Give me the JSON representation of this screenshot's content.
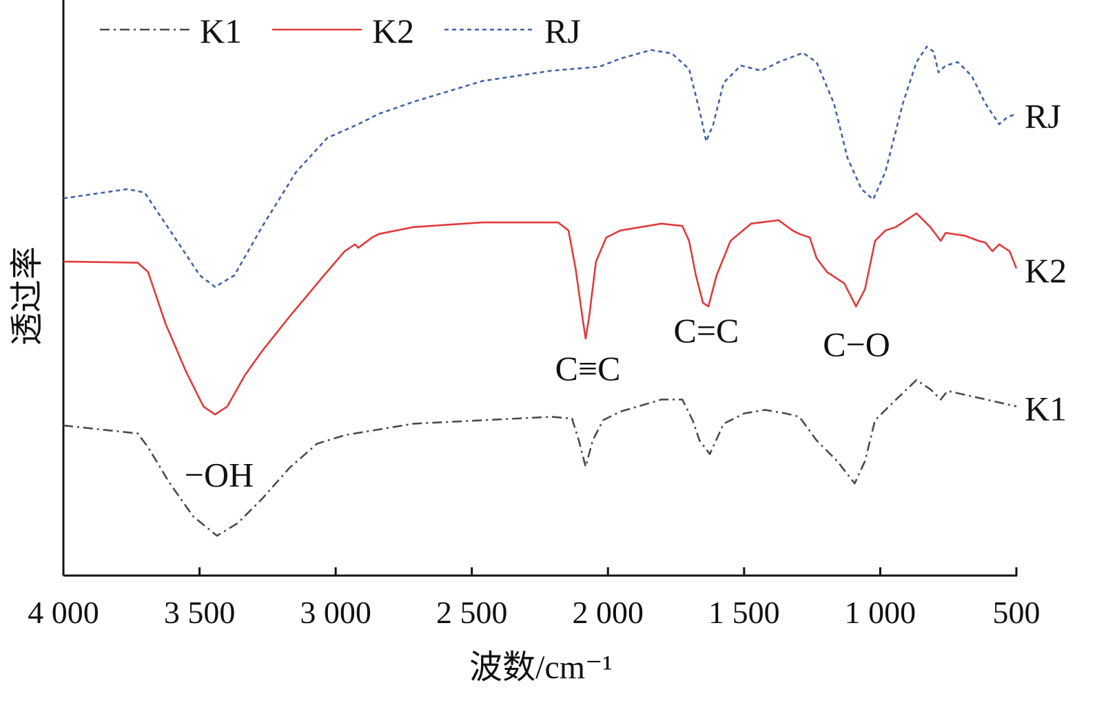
{
  "chart_data": {
    "type": "line",
    "title": "",
    "xlabel": "波数/cm⁻¹",
    "ylabel": "透过率",
    "xlim": [
      4000,
      500
    ],
    "ylim": [
      0,
      100
    ],
    "x_reversed": true,
    "grid": false,
    "legend_placement": "top-left",
    "xticks": [
      4000,
      3500,
      3000,
      2500,
      2000,
      1500,
      1000,
      500
    ],
    "xtick_labels": [
      "4 000",
      "3 500",
      "3 000",
      "2 500",
      "2 000",
      "1 500",
      "1 000",
      "500"
    ],
    "series": [
      {
        "name": "K1",
        "color": "#4a4a4a",
        "style": "dash-dot",
        "x": [
          4000,
          3727,
          3689,
          3613,
          3524,
          3436,
          3360,
          3271,
          3170,
          3069,
          2967,
          2866,
          2714,
          2461,
          2208,
          2132,
          2107,
          2082,
          2056,
          2018,
          1955,
          1803,
          1727,
          1689,
          1664,
          1626,
          1575,
          1499,
          1423,
          1348,
          1297,
          1234,
          1158,
          1094,
          1056,
          1019,
          968,
          867,
          816,
          778,
          753,
          639,
          500
        ],
        "y": [
          26.0,
          24.6,
          22.2,
          16.2,
          10.2,
          6.8,
          9.0,
          13.2,
          18.6,
          22.8,
          24.3,
          25.1,
          26.3,
          26.9,
          27.5,
          27.2,
          23.4,
          18.8,
          23.4,
          26.9,
          28.4,
          30.5,
          30.5,
          26.9,
          23.4,
          21.0,
          26.3,
          28.1,
          28.7,
          28.1,
          27.5,
          23.4,
          19.8,
          15.9,
          19.8,
          26.9,
          29.3,
          33.9,
          32.3,
          30.5,
          32.0,
          30.8,
          29.3
        ]
      },
      {
        "name": "K2",
        "color": "#e03a3a",
        "style": "solid",
        "x": [
          4000,
          3727,
          3689,
          3625,
          3549,
          3486,
          3443,
          3398,
          3334,
          3271,
          3170,
          3043,
          2967,
          2929,
          2917,
          2866,
          2841,
          2714,
          2461,
          2183,
          2145,
          2119,
          2094,
          2082,
          2069,
          2044,
          2006,
          1955,
          1803,
          1727,
          1702,
          1677,
          1651,
          1631,
          1601,
          1550,
          1474,
          1373,
          1322,
          1297,
          1259,
          1234,
          1196,
          1132,
          1089,
          1056,
          1019,
          981,
          943,
          867,
          816,
          778,
          760,
          689,
          639,
          614,
          588,
          563,
          525,
          500
        ],
        "y": [
          54.5,
          54.3,
          52.7,
          43.7,
          35.3,
          29.3,
          27.9,
          29.3,
          34.7,
          38.9,
          44.9,
          52.1,
          56.3,
          57.5,
          56.9,
          58.7,
          59.3,
          60.5,
          61.3,
          61.3,
          59.9,
          53.3,
          44.9,
          41.1,
          44.9,
          54.5,
          58.7,
          59.9,
          61.1,
          60.7,
          58.1,
          52.1,
          47.3,
          46.7,
          52.1,
          58.1,
          61.1,
          61.7,
          59.9,
          59.3,
          58.7,
          55.1,
          52.7,
          50.7,
          46.7,
          49.7,
          58.1,
          59.9,
          60.5,
          62.9,
          60.5,
          58.1,
          59.5,
          59.0,
          58.1,
          57.8,
          56.3,
          57.5,
          56.3,
          53.3
        ]
      },
      {
        "name": "RJ",
        "color": "#4060a8",
        "style": "dashed",
        "x": [
          4000,
          3765,
          3702,
          3600,
          3499,
          3443,
          3372,
          3271,
          3145,
          3031,
          2917,
          2841,
          2714,
          2461,
          2208,
          2031,
          1955,
          1841,
          1765,
          1702,
          1664,
          1639,
          1613,
          1575,
          1512,
          1436,
          1373,
          1284,
          1234,
          1170,
          1120,
          1069,
          1026,
          981,
          917,
          867,
          829,
          804,
          786,
          760,
          715,
          664,
          614,
          563,
          533,
          500
        ],
        "y": [
          65.5,
          67.1,
          66.5,
          59.3,
          52.1,
          50.1,
          52.1,
          60.5,
          70.1,
          76.0,
          78.4,
          80.2,
          82.3,
          85.9,
          87.7,
          88.4,
          89.8,
          91.3,
          90.7,
          88.0,
          80.8,
          75.4,
          78.4,
          85.6,
          88.6,
          87.7,
          89.2,
          90.8,
          89.2,
          82.0,
          72.5,
          67.1,
          65.3,
          70.1,
          82.0,
          89.2,
          91.9,
          91.0,
          87.4,
          88.6,
          89.2,
          86.8,
          82.0,
          78.4,
          79.6,
          80.2
        ]
      }
    ],
    "annotations": [
      {
        "text": "−OH",
        "x": 3428,
        "y": 17.4
      },
      {
        "text": "C≡C",
        "x": 2074,
        "y": 35.9
      },
      {
        "text": "C=C",
        "x": 1639,
        "y": 42.5
      },
      {
        "text": "C−O",
        "x": 1087,
        "y": 40.1
      }
    ],
    "series_end_labels": [
      "RJ",
      "K2",
      "K1"
    ]
  }
}
